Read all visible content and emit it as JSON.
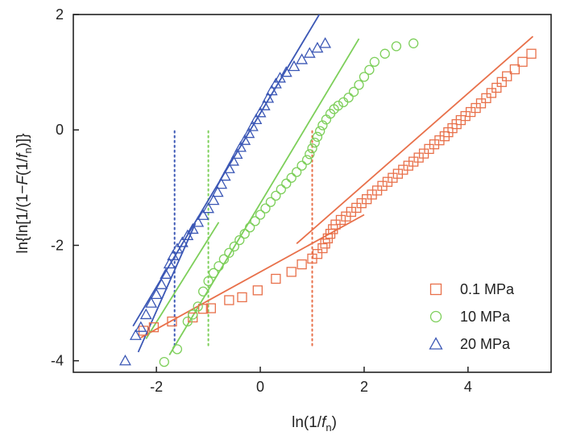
{
  "chart_data": {
    "type": "scatter",
    "title": "",
    "xlabel": {
      "main": "ln(1/",
      "italic": "f",
      "sub": "n",
      "close": ")"
    },
    "ylabel": {
      "pre": "ln{ln[1/(1−",
      "italic1": "F",
      "mid": "(1/",
      "italic2": "f",
      "sub": "n",
      "close": ")]}"
    },
    "xlim": [
      -3.6,
      5.6
    ],
    "ylim": [
      -4.2,
      2.0
    ],
    "xticks": [
      -2,
      0,
      2,
      4
    ],
    "xtick_labels": [
      "-2",
      "0",
      "2",
      "4"
    ],
    "yticks": [
      -4,
      -2,
      0,
      2
    ],
    "ytick_labels": [
      "-4",
      "-2",
      "0",
      "2"
    ],
    "grid": false,
    "legend_position": "bottom-right",
    "series": [
      {
        "name": "0.1 MPa",
        "marker": "square",
        "color": "#e8704a",
        "points": [
          [
            -2.25,
            -3.48
          ],
          [
            -2.05,
            -3.42
          ],
          [
            -1.7,
            -3.32
          ],
          [
            -1.3,
            -3.25
          ],
          [
            -1.1,
            -3.1
          ],
          [
            -0.95,
            -3.09
          ],
          [
            -0.6,
            -2.95
          ],
          [
            -0.35,
            -2.9
          ],
          [
            -0.05,
            -2.78
          ],
          [
            0.3,
            -2.58
          ],
          [
            0.6,
            -2.46
          ],
          [
            0.8,
            -2.33
          ],
          [
            1.0,
            -2.23
          ],
          [
            1.1,
            -2.15
          ],
          [
            1.2,
            -2.05
          ],
          [
            1.25,
            -1.97
          ],
          [
            1.3,
            -1.88
          ],
          [
            1.35,
            -1.8
          ],
          [
            1.4,
            -1.72
          ],
          [
            1.45,
            -1.64
          ],
          [
            1.55,
            -1.56
          ],
          [
            1.65,
            -1.5
          ],
          [
            1.75,
            -1.42
          ],
          [
            1.85,
            -1.35
          ],
          [
            1.95,
            -1.27
          ],
          [
            2.05,
            -1.2
          ],
          [
            2.15,
            -1.12
          ],
          [
            2.25,
            -1.05
          ],
          [
            2.35,
            -0.97
          ],
          [
            2.45,
            -0.9
          ],
          [
            2.55,
            -0.83
          ],
          [
            2.65,
            -0.76
          ],
          [
            2.75,
            -0.69
          ],
          [
            2.85,
            -0.62
          ],
          [
            2.95,
            -0.55
          ],
          [
            3.05,
            -0.48
          ],
          [
            3.15,
            -0.41
          ],
          [
            3.25,
            -0.33
          ],
          [
            3.35,
            -0.25
          ],
          [
            3.45,
            -0.18
          ],
          [
            3.55,
            -0.11
          ],
          [
            3.62,
            -0.04
          ],
          [
            3.7,
            0.03
          ],
          [
            3.78,
            0.1
          ],
          [
            3.86,
            0.17
          ],
          [
            3.95,
            0.24
          ],
          [
            4.05,
            0.31
          ],
          [
            4.15,
            0.38
          ],
          [
            4.25,
            0.46
          ],
          [
            4.35,
            0.55
          ],
          [
            4.45,
            0.64
          ],
          [
            4.55,
            0.73
          ],
          [
            4.65,
            0.83
          ],
          [
            4.75,
            0.93
          ],
          [
            4.9,
            1.05
          ],
          [
            5.05,
            1.18
          ],
          [
            5.22,
            1.32
          ]
        ],
        "fits": [
          {
            "x1": -2.3,
            "y1": -3.6,
            "x2": 2.0,
            "y2": -1.47
          },
          {
            "x1": 0.7,
            "y1": -1.97,
            "x2": 5.25,
            "y2": 1.62
          }
        ],
        "threshold_x": 1.0
      },
      {
        "name": "10 MPa",
        "marker": "circle",
        "color": "#7dcf5a",
        "points": [
          [
            -1.85,
            -4.02
          ],
          [
            -1.6,
            -3.8
          ],
          [
            -1.4,
            -3.32
          ],
          [
            -1.3,
            -3.2
          ],
          [
            -1.2,
            -3.06
          ],
          [
            -1.1,
            -2.8
          ],
          [
            -1.0,
            -2.62
          ],
          [
            -0.9,
            -2.48
          ],
          [
            -0.8,
            -2.36
          ],
          [
            -0.7,
            -2.24
          ],
          [
            -0.6,
            -2.13
          ],
          [
            -0.5,
            -2.02
          ],
          [
            -0.4,
            -1.91
          ],
          [
            -0.3,
            -1.8
          ],
          [
            -0.2,
            -1.69
          ],
          [
            -0.1,
            -1.58
          ],
          [
            0.0,
            -1.47
          ],
          [
            0.1,
            -1.36
          ],
          [
            0.2,
            -1.25
          ],
          [
            0.3,
            -1.14
          ],
          [
            0.4,
            -1.03
          ],
          [
            0.5,
            -0.93
          ],
          [
            0.6,
            -0.83
          ],
          [
            0.7,
            -0.73
          ],
          [
            0.8,
            -0.62
          ],
          [
            0.9,
            -0.52
          ],
          [
            0.95,
            -0.42
          ],
          [
            1.0,
            -0.32
          ],
          [
            1.05,
            -0.22
          ],
          [
            1.1,
            -0.12
          ],
          [
            1.15,
            -0.02
          ],
          [
            1.2,
            0.08
          ],
          [
            1.27,
            0.18
          ],
          [
            1.35,
            0.28
          ],
          [
            1.42,
            0.36
          ],
          [
            1.5,
            0.42
          ],
          [
            1.6,
            0.48
          ],
          [
            1.7,
            0.56
          ],
          [
            1.8,
            0.66
          ],
          [
            1.9,
            0.78
          ],
          [
            2.0,
            0.92
          ],
          [
            2.1,
            1.04
          ],
          [
            2.2,
            1.18
          ],
          [
            2.4,
            1.32
          ],
          [
            2.62,
            1.45
          ],
          [
            2.95,
            1.5
          ]
        ],
        "fits": [
          {
            "x1": -2.2,
            "y1": -3.62,
            "x2": -0.8,
            "y2": -1.6
          },
          {
            "x1": -1.75,
            "y1": -3.9,
            "x2": 1.9,
            "y2": 1.58
          }
        ],
        "threshold_x": -1.0
      },
      {
        "name": "20 MPa",
        "marker": "triangle",
        "color": "#3b57b5",
        "points": [
          [
            -2.6,
            -4.0
          ],
          [
            -2.4,
            -3.56
          ],
          [
            -2.3,
            -3.42
          ],
          [
            -2.2,
            -3.2
          ],
          [
            -2.1,
            -3.0
          ],
          [
            -2.0,
            -2.85
          ],
          [
            -1.9,
            -2.68
          ],
          [
            -1.82,
            -2.5
          ],
          [
            -1.75,
            -2.32
          ],
          [
            -1.68,
            -2.18
          ],
          [
            -1.6,
            -2.06
          ],
          [
            -1.5,
            -1.95
          ],
          [
            -1.4,
            -1.83
          ],
          [
            -1.3,
            -1.72
          ],
          [
            -1.2,
            -1.6
          ],
          [
            -1.1,
            -1.48
          ],
          [
            -1.0,
            -1.36
          ],
          [
            -0.9,
            -1.22
          ],
          [
            -0.82,
            -1.08
          ],
          [
            -0.75,
            -0.94
          ],
          [
            -0.68,
            -0.8
          ],
          [
            -0.6,
            -0.67
          ],
          [
            -0.52,
            -0.54
          ],
          [
            -0.45,
            -0.42
          ],
          [
            -0.38,
            -0.3
          ],
          [
            -0.3,
            -0.18
          ],
          [
            -0.22,
            -0.06
          ],
          [
            -0.15,
            0.06
          ],
          [
            -0.08,
            0.18
          ],
          [
            0.0,
            0.3
          ],
          [
            0.08,
            0.42
          ],
          [
            0.15,
            0.55
          ],
          [
            0.22,
            0.68
          ],
          [
            0.3,
            0.8
          ],
          [
            0.38,
            0.9
          ],
          [
            0.5,
            1.0
          ],
          [
            0.65,
            1.1
          ],
          [
            0.8,
            1.22
          ],
          [
            0.95,
            1.33
          ],
          [
            1.1,
            1.42
          ],
          [
            1.25,
            1.5
          ]
        ],
        "fits": [
          {
            "x1": -2.35,
            "y1": -3.85,
            "x2": -1.25,
            "y2": -1.62
          },
          {
            "x1": -2.45,
            "y1": -3.4,
            "x2": 1.15,
            "y2": 2.02
          }
        ],
        "threshold_x": -1.65
      }
    ]
  }
}
